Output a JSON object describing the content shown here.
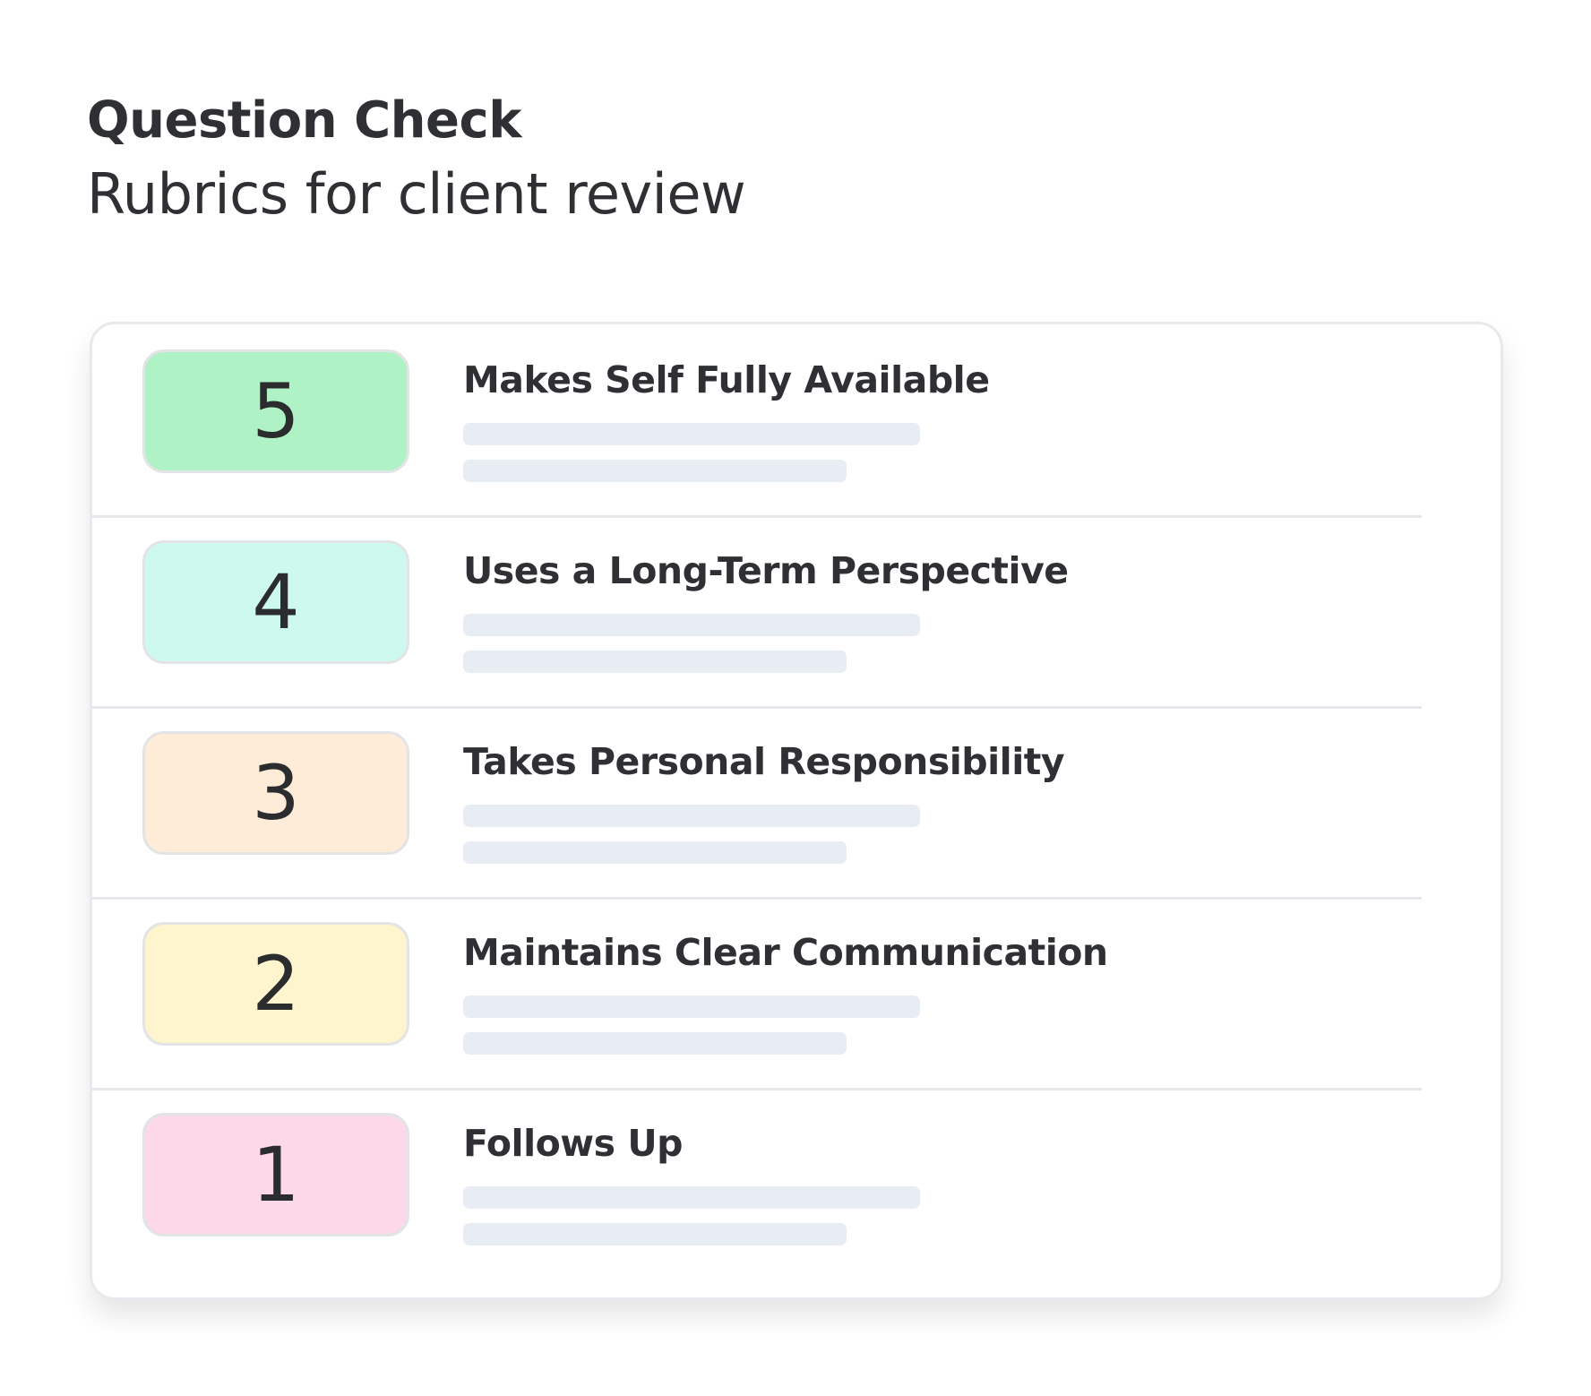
{
  "header": {
    "title": "Question Check",
    "subtitle": "Rubrics for client review"
  },
  "rubrics": [
    {
      "score": 5,
      "label": "Makes Self Fully Available"
    },
    {
      "score": 4,
      "label": "Uses a Long-Term Perspective"
    },
    {
      "score": 3,
      "label": "Takes Personal Responsibility"
    },
    {
      "score": 2,
      "label": "Maintains Clear Communication"
    },
    {
      "score": 1,
      "label": "Follows Up"
    }
  ]
}
